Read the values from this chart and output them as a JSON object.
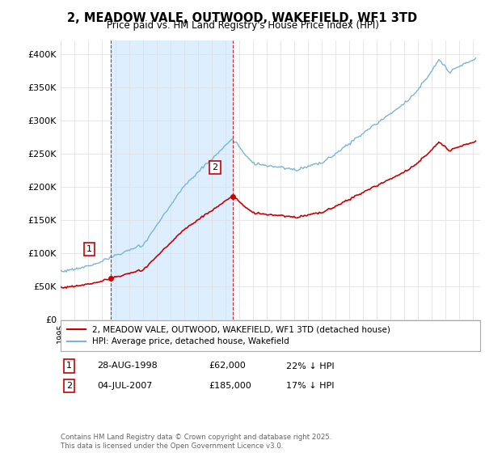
{
  "title": "2, MEADOW VALE, OUTWOOD, WAKEFIELD, WF1 3TD",
  "subtitle": "Price paid vs. HM Land Registry's House Price Index (HPI)",
  "ylim": [
    0,
    420000
  ],
  "yticks": [
    0,
    50000,
    100000,
    150000,
    200000,
    250000,
    300000,
    350000,
    400000
  ],
  "ytick_labels": [
    "£0",
    "£50K",
    "£100K",
    "£150K",
    "£200K",
    "£250K",
    "£300K",
    "£350K",
    "£400K"
  ],
  "sale1_date_num": 1998.66,
  "sale1_price": 62000,
  "sale2_date_num": 2007.51,
  "sale2_price": 185000,
  "hpi_color": "#7ab5d8",
  "sale_color": "#cc0000",
  "vline_color": "#cc0000",
  "shade_color": "#ddeeff",
  "grid_color": "#dddddd",
  "legend_line1": "2, MEADOW VALE, OUTWOOD, WAKEFIELD, WF1 3TD (detached house)",
  "legend_line2": "HPI: Average price, detached house, Wakefield",
  "table_row1": [
    "1",
    "28-AUG-1998",
    "£62,000",
    "22% ↓ HPI"
  ],
  "table_row2": [
    "2",
    "04-JUL-2007",
    "£185,000",
    "17% ↓ HPI"
  ],
  "copyright_text": "Contains HM Land Registry data © Crown copyright and database right 2025.\nThis data is licensed under the Open Government Licence v3.0.",
  "background_color": "#ffffff"
}
